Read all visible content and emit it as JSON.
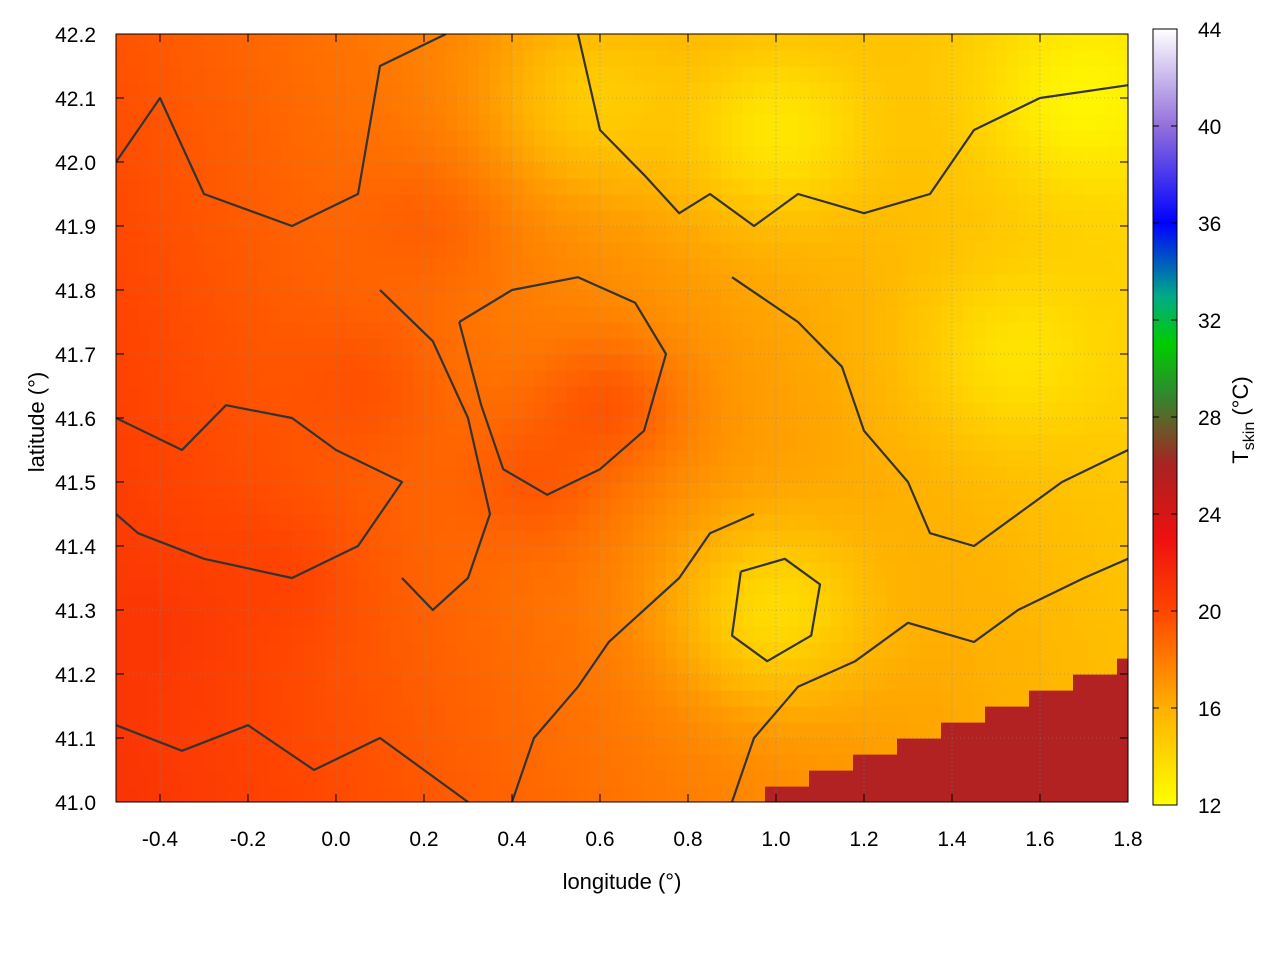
{
  "chart_data": {
    "type": "heatmap",
    "title": "",
    "xlabel": "longitude (°)",
    "ylabel": "latitude (°)",
    "xlim": [
      -0.5,
      1.8
    ],
    "ylim": [
      41.0,
      42.2
    ],
    "x_ticks": [
      "-0.4",
      "-0.2",
      "0.0",
      "0.2",
      "0.4",
      "0.6",
      "0.8",
      "1.0",
      "1.2",
      "1.4",
      "1.6",
      "1.8"
    ],
    "y_ticks": [
      "41.0",
      "41.1",
      "41.2",
      "41.3",
      "41.4",
      "41.5",
      "41.6",
      "41.7",
      "41.8",
      "41.9",
      "42.0",
      "42.1",
      "42.2"
    ],
    "grid": true,
    "colorbar": {
      "label": "T",
      "label_sub": "skin",
      "label_unit": " (°C)",
      "range": [
        12,
        44
      ],
      "ticks": [
        "12",
        "16",
        "20",
        "24",
        "28",
        "32",
        "36",
        "40",
        "44"
      ],
      "stops": [
        {
          "value": 12,
          "color": "#ffff00"
        },
        {
          "value": 16,
          "color": "#ffb000"
        },
        {
          "value": 20,
          "color": "#ff4500"
        },
        {
          "value": 23,
          "color": "#ee1010"
        },
        {
          "value": 26,
          "color": "#aa2222"
        },
        {
          "value": 29,
          "color": "#2e8b2e"
        },
        {
          "value": 31,
          "color": "#00cc00"
        },
        {
          "value": 33,
          "color": "#00aa88"
        },
        {
          "value": 36,
          "color": "#0000ff"
        },
        {
          "value": 40,
          "color": "#9370db"
        },
        {
          "value": 44,
          "color": "#ffffff"
        }
      ]
    },
    "field": {
      "sea_value": 26,
      "sea_color": "#b22222",
      "hot_spots": [
        {
          "lon": -0.4,
          "lat": 41.28,
          "value": 21
        },
        {
          "lon": -0.15,
          "lat": 41.35,
          "value": 20.5
        },
        {
          "lon": 0.05,
          "lat": 41.65,
          "value": 20
        },
        {
          "lon": 0.45,
          "lat": 41.5,
          "value": 20
        },
        {
          "lon": 0.62,
          "lat": 41.62,
          "value": 20.5
        },
        {
          "lon": 0.2,
          "lat": 41.9,
          "value": 19.5
        }
      ],
      "cool_spots": [
        {
          "lon": 1.7,
          "lat": 42.1,
          "value": 12
        },
        {
          "lon": 1.0,
          "lat": 42.05,
          "value": 12.5
        },
        {
          "lon": 1.55,
          "lat": 41.7,
          "value": 13
        },
        {
          "lon": 1.0,
          "lat": 41.3,
          "value": 13
        },
        {
          "lon": 0.6,
          "lat": 42.1,
          "value": 14
        }
      ]
    },
    "contours": [
      {
        "name": "contour-west-upper",
        "points": [
          [
            -0.5,
            42.0
          ],
          [
            -0.4,
            42.1
          ],
          [
            -0.3,
            41.95
          ],
          [
            -0.1,
            41.9
          ],
          [
            0.05,
            41.95
          ],
          [
            0.1,
            42.15
          ],
          [
            0.25,
            42.2
          ]
        ]
      },
      {
        "name": "contour-west-mid",
        "points": [
          [
            -0.5,
            41.6
          ],
          [
            -0.35,
            41.55
          ],
          [
            -0.25,
            41.62
          ],
          [
            -0.1,
            41.6
          ],
          [
            0.0,
            41.55
          ],
          [
            0.15,
            41.5
          ],
          [
            0.05,
            41.4
          ],
          [
            -0.1,
            41.35
          ],
          [
            -0.3,
            41.38
          ],
          [
            -0.45,
            41.42
          ],
          [
            -0.5,
            41.45
          ]
        ]
      },
      {
        "name": "contour-central",
        "points": [
          [
            0.28,
            41.75
          ],
          [
            0.4,
            41.8
          ],
          [
            0.55,
            41.82
          ],
          [
            0.68,
            41.78
          ],
          [
            0.75,
            41.7
          ],
          [
            0.7,
            41.58
          ],
          [
            0.6,
            41.52
          ],
          [
            0.48,
            41.48
          ],
          [
            0.38,
            41.52
          ],
          [
            0.33,
            41.62
          ],
          [
            0.28,
            41.75
          ]
        ]
      },
      {
        "name": "contour-northeast",
        "points": [
          [
            0.55,
            42.2
          ],
          [
            0.6,
            42.05
          ],
          [
            0.7,
            41.98
          ],
          [
            0.78,
            41.92
          ],
          [
            0.85,
            41.95
          ],
          [
            0.95,
            41.9
          ],
          [
            1.05,
            41.95
          ],
          [
            1.2,
            41.92
          ],
          [
            1.35,
            41.95
          ],
          [
            1.45,
            42.05
          ],
          [
            1.6,
            42.1
          ],
          [
            1.8,
            42.12
          ]
        ]
      },
      {
        "name": "contour-east-mid",
        "points": [
          [
            0.9,
            41.82
          ],
          [
            1.05,
            41.75
          ],
          [
            1.15,
            41.68
          ],
          [
            1.2,
            41.58
          ],
          [
            1.3,
            41.5
          ],
          [
            1.35,
            41.42
          ],
          [
            1.45,
            41.4
          ],
          [
            1.55,
            41.45
          ],
          [
            1.65,
            41.5
          ],
          [
            1.8,
            41.55
          ]
        ]
      },
      {
        "name": "contour-southeast-ring",
        "points": [
          [
            0.92,
            41.36
          ],
          [
            1.02,
            41.38
          ],
          [
            1.1,
            41.34
          ],
          [
            1.08,
            41.26
          ],
          [
            0.98,
            41.22
          ],
          [
            0.9,
            41.26
          ],
          [
            0.92,
            41.36
          ]
        ]
      },
      {
        "name": "contour-coast",
        "points": [
          [
            0.9,
            41.0
          ],
          [
            0.95,
            41.1
          ],
          [
            1.05,
            41.18
          ],
          [
            1.18,
            41.22
          ],
          [
            1.3,
            41.28
          ],
          [
            1.45,
            41.25
          ],
          [
            1.55,
            41.3
          ],
          [
            1.7,
            41.35
          ],
          [
            1.8,
            41.38
          ]
        ]
      },
      {
        "name": "contour-south-west",
        "points": [
          [
            -0.5,
            41.12
          ],
          [
            -0.35,
            41.08
          ],
          [
            -0.2,
            41.12
          ],
          [
            -0.05,
            41.05
          ],
          [
            0.1,
            41.1
          ],
          [
            0.2,
            41.05
          ],
          [
            0.3,
            41.0
          ]
        ]
      },
      {
        "name": "contour-south-central",
        "points": [
          [
            0.4,
            41.0
          ],
          [
            0.45,
            41.1
          ],
          [
            0.55,
            41.18
          ],
          [
            0.62,
            41.25
          ],
          [
            0.7,
            41.3
          ],
          [
            0.78,
            41.35
          ],
          [
            0.85,
            41.42
          ],
          [
            0.95,
            41.45
          ]
        ]
      },
      {
        "name": "contour-central-west",
        "points": [
          [
            0.1,
            41.8
          ],
          [
            0.22,
            41.72
          ],
          [
            0.3,
            41.6
          ],
          [
            0.35,
            41.45
          ],
          [
            0.3,
            41.35
          ],
          [
            0.22,
            41.3
          ],
          [
            0.15,
            41.35
          ]
        ]
      }
    ]
  }
}
